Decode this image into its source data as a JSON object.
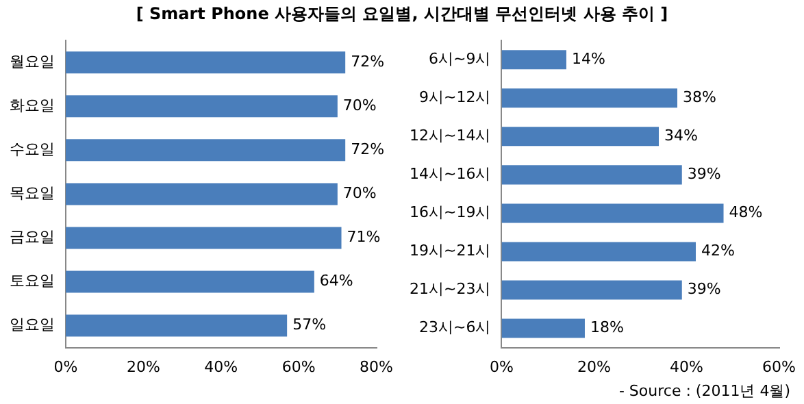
{
  "chart_data": [
    {
      "type": "bar",
      "orientation": "horizontal",
      "title": "[ Smart Phone 사용자들의 요일별, 시간대별 무선인터넷 사용 추이 ]",
      "categories": [
        "월요일",
        "화요일",
        "수요일",
        "목요일",
        "금요일",
        "토요일",
        "일요일"
      ],
      "values": [
        72,
        70,
        72,
        70,
        71,
        64,
        57
      ],
      "value_labels": [
        "72%",
        "70%",
        "72%",
        "70%",
        "71%",
        "64%",
        "57%"
      ],
      "color": "#4a7ebb",
      "xlim": [
        0,
        80
      ],
      "xticks": [
        {
          "value": 0,
          "label": "0%"
        },
        {
          "value": 20,
          "label": "20%"
        },
        {
          "value": 40,
          "label": "40%"
        },
        {
          "value": 60,
          "label": "60%"
        },
        {
          "value": 80,
          "label": "80%"
        }
      ],
      "grid": false,
      "legend": false
    },
    {
      "type": "bar",
      "orientation": "horizontal",
      "categories": [
        "6시~9시",
        "9시~12시",
        "12시~14시",
        "14시~16시",
        "16시~19시",
        "19시~21시",
        "21시~23시",
        "23시~6시"
      ],
      "values": [
        14,
        38,
        34,
        39,
        48,
        42,
        39,
        18
      ],
      "value_labels": [
        "14%",
        "38%",
        "34%",
        "39%",
        "48%",
        "42%",
        "39%",
        "18%"
      ],
      "color": "#4a7ebb",
      "xlim": [
        0,
        60
      ],
      "xticks": [
        {
          "value": 0,
          "label": "0%"
        },
        {
          "value": 20,
          "label": "20%"
        },
        {
          "value": 40,
          "label": "40%"
        },
        {
          "value": 60,
          "label": "60%"
        }
      ],
      "grid": false,
      "legend": false,
      "annotations": [
        "- Source : (2011년 4월)"
      ]
    }
  ]
}
